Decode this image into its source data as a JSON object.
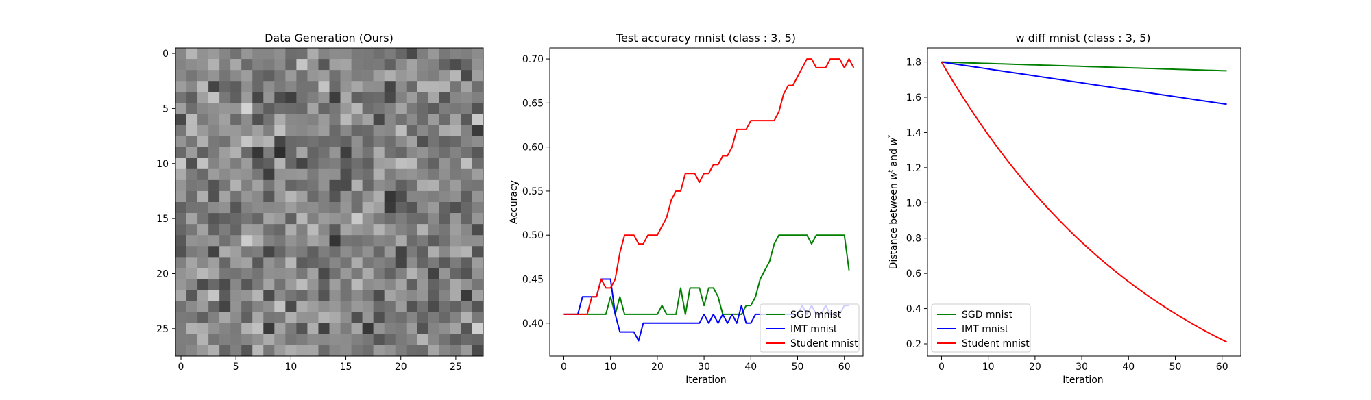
{
  "chart_data": [
    {
      "type": "heatmap",
      "title": "Data Generation (Ours)",
      "colormap": "gray",
      "rows": 28,
      "cols": 28,
      "xlim": [
        -0.5,
        27.5
      ],
      "ylim": [
        27.5,
        -0.5
      ],
      "xticks": [
        0,
        5,
        10,
        15,
        20,
        25
      ],
      "yticks": [
        0,
        5,
        10,
        15,
        20,
        25
      ],
      "xtick_labels": [
        "0",
        "5",
        "10",
        "15",
        "20",
        "25"
      ],
      "ytick_labels": [
        "0",
        "5",
        "10",
        "15",
        "20",
        "25"
      ],
      "grid": false
    },
    {
      "type": "line",
      "title": "Test accuracy mnist (class : 3, 5)",
      "xlabel": "Iteration",
      "ylabel": "Accuracy",
      "xlim": [
        -3,
        64
      ],
      "ylim": [
        0.3625,
        0.7125
      ],
      "xticks": [
        0,
        10,
        20,
        30,
        40,
        50,
        60
      ],
      "xtick_labels": [
        "0",
        "10",
        "20",
        "30",
        "40",
        "50",
        "60"
      ],
      "yticks": [
        0.4,
        0.45,
        0.5,
        0.55,
        0.6,
        0.65,
        0.7
      ],
      "ytick_labels": [
        "0.40",
        "0.45",
        "0.50",
        "0.55",
        "0.60",
        "0.65",
        "0.70"
      ],
      "legend_position": "lower-right",
      "grid": false,
      "series": [
        {
          "name": "SGD mnist",
          "color": "#008000",
          "values": [
            0.41,
            0.41,
            0.41,
            0.41,
            0.41,
            0.41,
            0.41,
            0.41,
            0.41,
            0.41,
            0.43,
            0.41,
            0.43,
            0.41,
            0.41,
            0.41,
            0.41,
            0.41,
            0.41,
            0.41,
            0.41,
            0.42,
            0.41,
            0.41,
            0.41,
            0.44,
            0.41,
            0.44,
            0.44,
            0.44,
            0.42,
            0.44,
            0.44,
            0.43,
            0.41,
            0.41,
            0.41,
            0.41,
            0.41,
            0.42,
            0.42,
            0.43,
            0.45,
            0.46,
            0.47,
            0.49,
            0.5,
            0.5,
            0.5,
            0.5,
            0.5,
            0.5,
            0.5,
            0.49,
            0.5,
            0.5,
            0.5,
            0.5,
            0.5,
            0.5,
            0.5,
            0.46
          ]
        },
        {
          "name": "IMT mnist",
          "color": "#0000ff",
          "values": [
            0.41,
            0.41,
            0.41,
            0.41,
            0.43,
            0.43,
            0.43,
            0.43,
            0.45,
            0.45,
            0.45,
            0.41,
            0.39,
            0.39,
            0.39,
            0.39,
            0.38,
            0.4,
            0.4,
            0.4,
            0.4,
            0.4,
            0.4,
            0.4,
            0.4,
            0.4,
            0.4,
            0.4,
            0.4,
            0.4,
            0.41,
            0.4,
            0.41,
            0.4,
            0.41,
            0.4,
            0.41,
            0.4,
            0.42,
            0.4,
            0.4,
            0.41,
            0.41,
            0.41,
            0.41,
            0.41,
            0.41,
            0.41,
            0.41,
            0.41,
            0.41,
            0.42,
            0.41,
            0.42,
            0.41,
            0.41,
            0.42,
            0.41,
            0.41,
            0.41,
            0.42,
            0.42
          ]
        },
        {
          "name": "Student mnist",
          "color": "#ff0000",
          "values": [
            0.41,
            0.41,
            0.41,
            0.41,
            0.41,
            0.41,
            0.43,
            0.43,
            0.45,
            0.44,
            0.44,
            0.45,
            0.48,
            0.5,
            0.5,
            0.5,
            0.49,
            0.49,
            0.5,
            0.5,
            0.5,
            0.51,
            0.52,
            0.54,
            0.55,
            0.55,
            0.57,
            0.57,
            0.57,
            0.56,
            0.57,
            0.57,
            0.58,
            0.58,
            0.59,
            0.59,
            0.6,
            0.62,
            0.62,
            0.62,
            0.63,
            0.63,
            0.63,
            0.63,
            0.63,
            0.63,
            0.64,
            0.66,
            0.67,
            0.67,
            0.68,
            0.69,
            0.7,
            0.7,
            0.69,
            0.69,
            0.69,
            0.7,
            0.7,
            0.7,
            0.69,
            0.7,
            0.69
          ]
        }
      ]
    },
    {
      "type": "line",
      "title": "w diff mnist (class : 3, 5)",
      "xlabel": "Iteration",
      "ylabel": "Distance between w^t and w^*",
      "ylabel_parts": {
        "prefix": "Distance between ",
        "var1": "w",
        "sup1": "t",
        "mid": " and ",
        "var2": "w",
        "sup2": "*"
      },
      "xlim": [
        -3,
        64
      ],
      "ylim": [
        0.13,
        1.88
      ],
      "xticks": [
        0,
        10,
        20,
        30,
        40,
        50,
        60
      ],
      "xtick_labels": [
        "0",
        "10",
        "20",
        "30",
        "40",
        "50",
        "60"
      ],
      "yticks": [
        0.2,
        0.4,
        0.6,
        0.8,
        1.0,
        1.2,
        1.4,
        1.6,
        1.8
      ],
      "ytick_labels": [
        "0.2",
        "0.4",
        "0.6",
        "0.8",
        "1.0",
        "1.2",
        "1.4",
        "1.6",
        "1.8"
      ],
      "legend_position": "lower-left",
      "grid": false,
      "series": [
        {
          "name": "SGD mnist",
          "color": "#008000",
          "start": 1.8,
          "end": 1.75,
          "shape": "slight-decline"
        },
        {
          "name": "IMT mnist",
          "color": "#0000ff",
          "start": 1.8,
          "end": 1.56,
          "shape": "linear"
        },
        {
          "name": "Student mnist",
          "color": "#ff0000",
          "start": 1.8,
          "end": 0.21,
          "shape": "convex-decay"
        }
      ],
      "x_range": [
        0,
        61
      ]
    }
  ]
}
